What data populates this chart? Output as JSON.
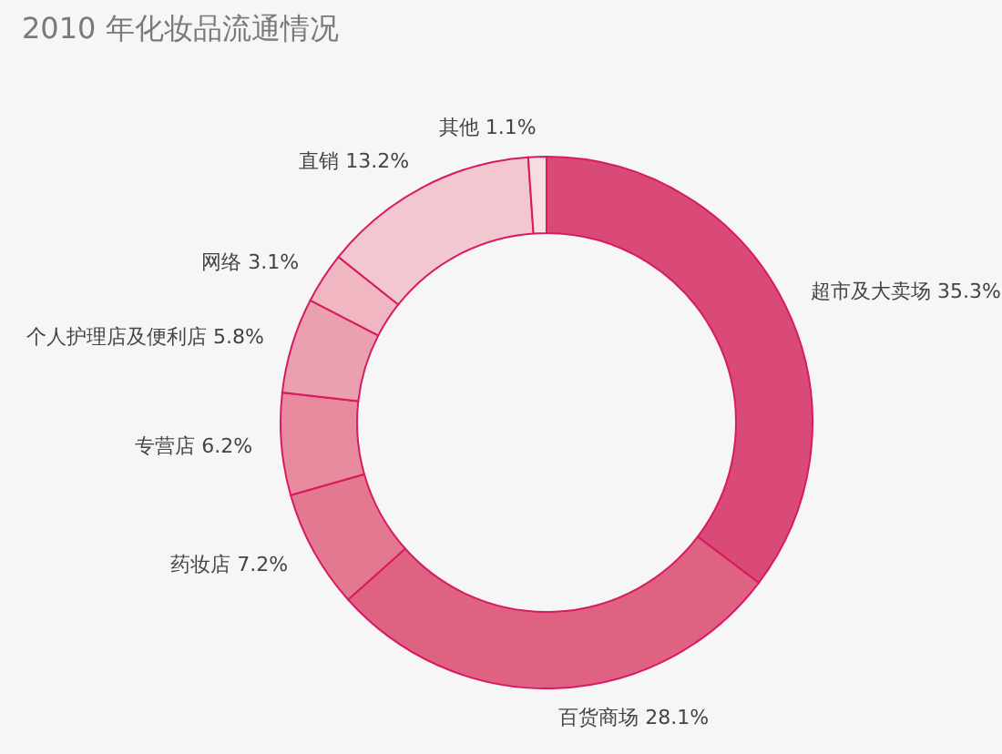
{
  "chart_data": {
    "type": "donut",
    "title": "2010 年化妆品流通情况",
    "categories": [
      "超市及大卖场",
      "百货商场",
      "药妆店",
      "专营店",
      "个人护理店及便利店",
      "网络",
      "直销",
      "其他"
    ],
    "values": [
      35.3,
      28.1,
      7.2,
      6.2,
      5.8,
      3.1,
      13.2,
      1.1
    ],
    "value_labels": [
      "35.3%",
      "28.1%",
      "7.2%",
      "6.2%",
      "5.8%",
      "3.1%",
      "13.2%",
      "1.1%"
    ],
    "colors": [
      "#d94a76",
      "#df6283",
      "#e37891",
      "#e78a9e",
      "#eba0b0",
      "#f0b6c2",
      "#f3c7d0",
      "#f8dde3"
    ],
    "legend": false
  }
}
